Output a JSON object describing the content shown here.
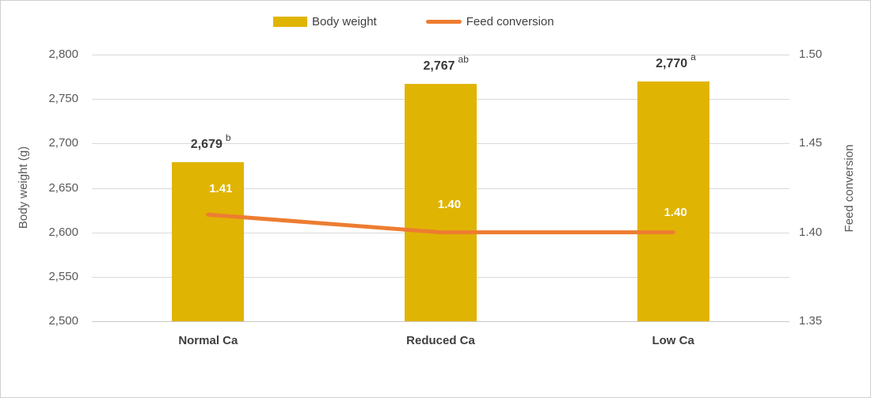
{
  "chart_data": {
    "type": "combo",
    "title": "",
    "categories": [
      "Normal Ca",
      "Reduced Ca",
      "Low Ca"
    ],
    "series": [
      {
        "name": "Body weight",
        "type": "bar",
        "axis": "left",
        "color": "#E0B402",
        "values": [
          2679,
          2767,
          2770
        ],
        "data_labels": [
          "2,679",
          "2,767",
          "2,770"
        ],
        "superscripts": [
          "b",
          "ab",
          "a"
        ]
      },
      {
        "name": "Feed conversion",
        "type": "line",
        "axis": "right",
        "color": "#ED7D31",
        "values": [
          1.41,
          1.4,
          1.4
        ],
        "data_labels": [
          "1.41",
          "1.40",
          "1.40"
        ]
      }
    ],
    "left_axis": {
      "label": "Body weight (g)",
      "min": 2500,
      "max": 2800,
      "tick_values": [
        2800,
        2750,
        2700,
        2650,
        2600,
        2550,
        2500
      ],
      "tick_labels": [
        "2,800",
        "2,750",
        "2,700",
        "2,650",
        "2,600",
        "2,550",
        "2,500"
      ]
    },
    "right_axis": {
      "label": "Feed conversion",
      "min": 1.35,
      "max": 1.5,
      "tick_values": [
        1.5,
        1.45,
        1.4,
        1.35
      ],
      "tick_labels": [
        "1.50",
        "1.45",
        "1.40",
        "1.35"
      ]
    },
    "grid": true,
    "legend_position": "top",
    "colors": {
      "gridline": "#D9D9D9",
      "axis_line": "#C9C9C9",
      "axis_text": "#595959",
      "label_text": "#3A3A3A",
      "border": "#CFCFCF"
    }
  }
}
